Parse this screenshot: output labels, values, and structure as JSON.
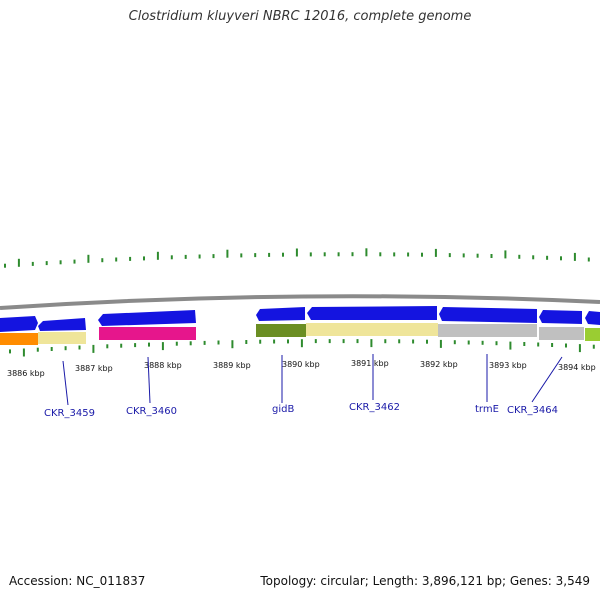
{
  "title": "Clostridium kluyveri NBRC 12016, complete genome",
  "footer": {
    "accession": "Accession: NC_011837",
    "topology": "Topology: circular; Length: 3,896,121 bp; Genes: 3,549"
  },
  "colors": {
    "backbone": "#8a8a8a",
    "tick": "#2e8b2e",
    "cds": "#1414e0",
    "label": "#1a1aa8"
  },
  "scale_labels": [
    "3886 kbp",
    "3887 kbp",
    "3888 kbp",
    "3889 kbp",
    "3890 kbp",
    "3891 kbp",
    "3892 kbp",
    "3893 kbp",
    "3894 kbp"
  ],
  "gene_labels": [
    "CKR_3459",
    "CKR_3460",
    "gidB",
    "CKR_3462",
    "trmE",
    "CKR_3464"
  ],
  "feature_colors": {
    "orange": "#ff8c00",
    "pale_yellow": "#efe59a",
    "magenta": "#e6168c",
    "olive": "#6b8e23",
    "gray": "#c0c0c0",
    "lime": "#9acd32"
  }
}
